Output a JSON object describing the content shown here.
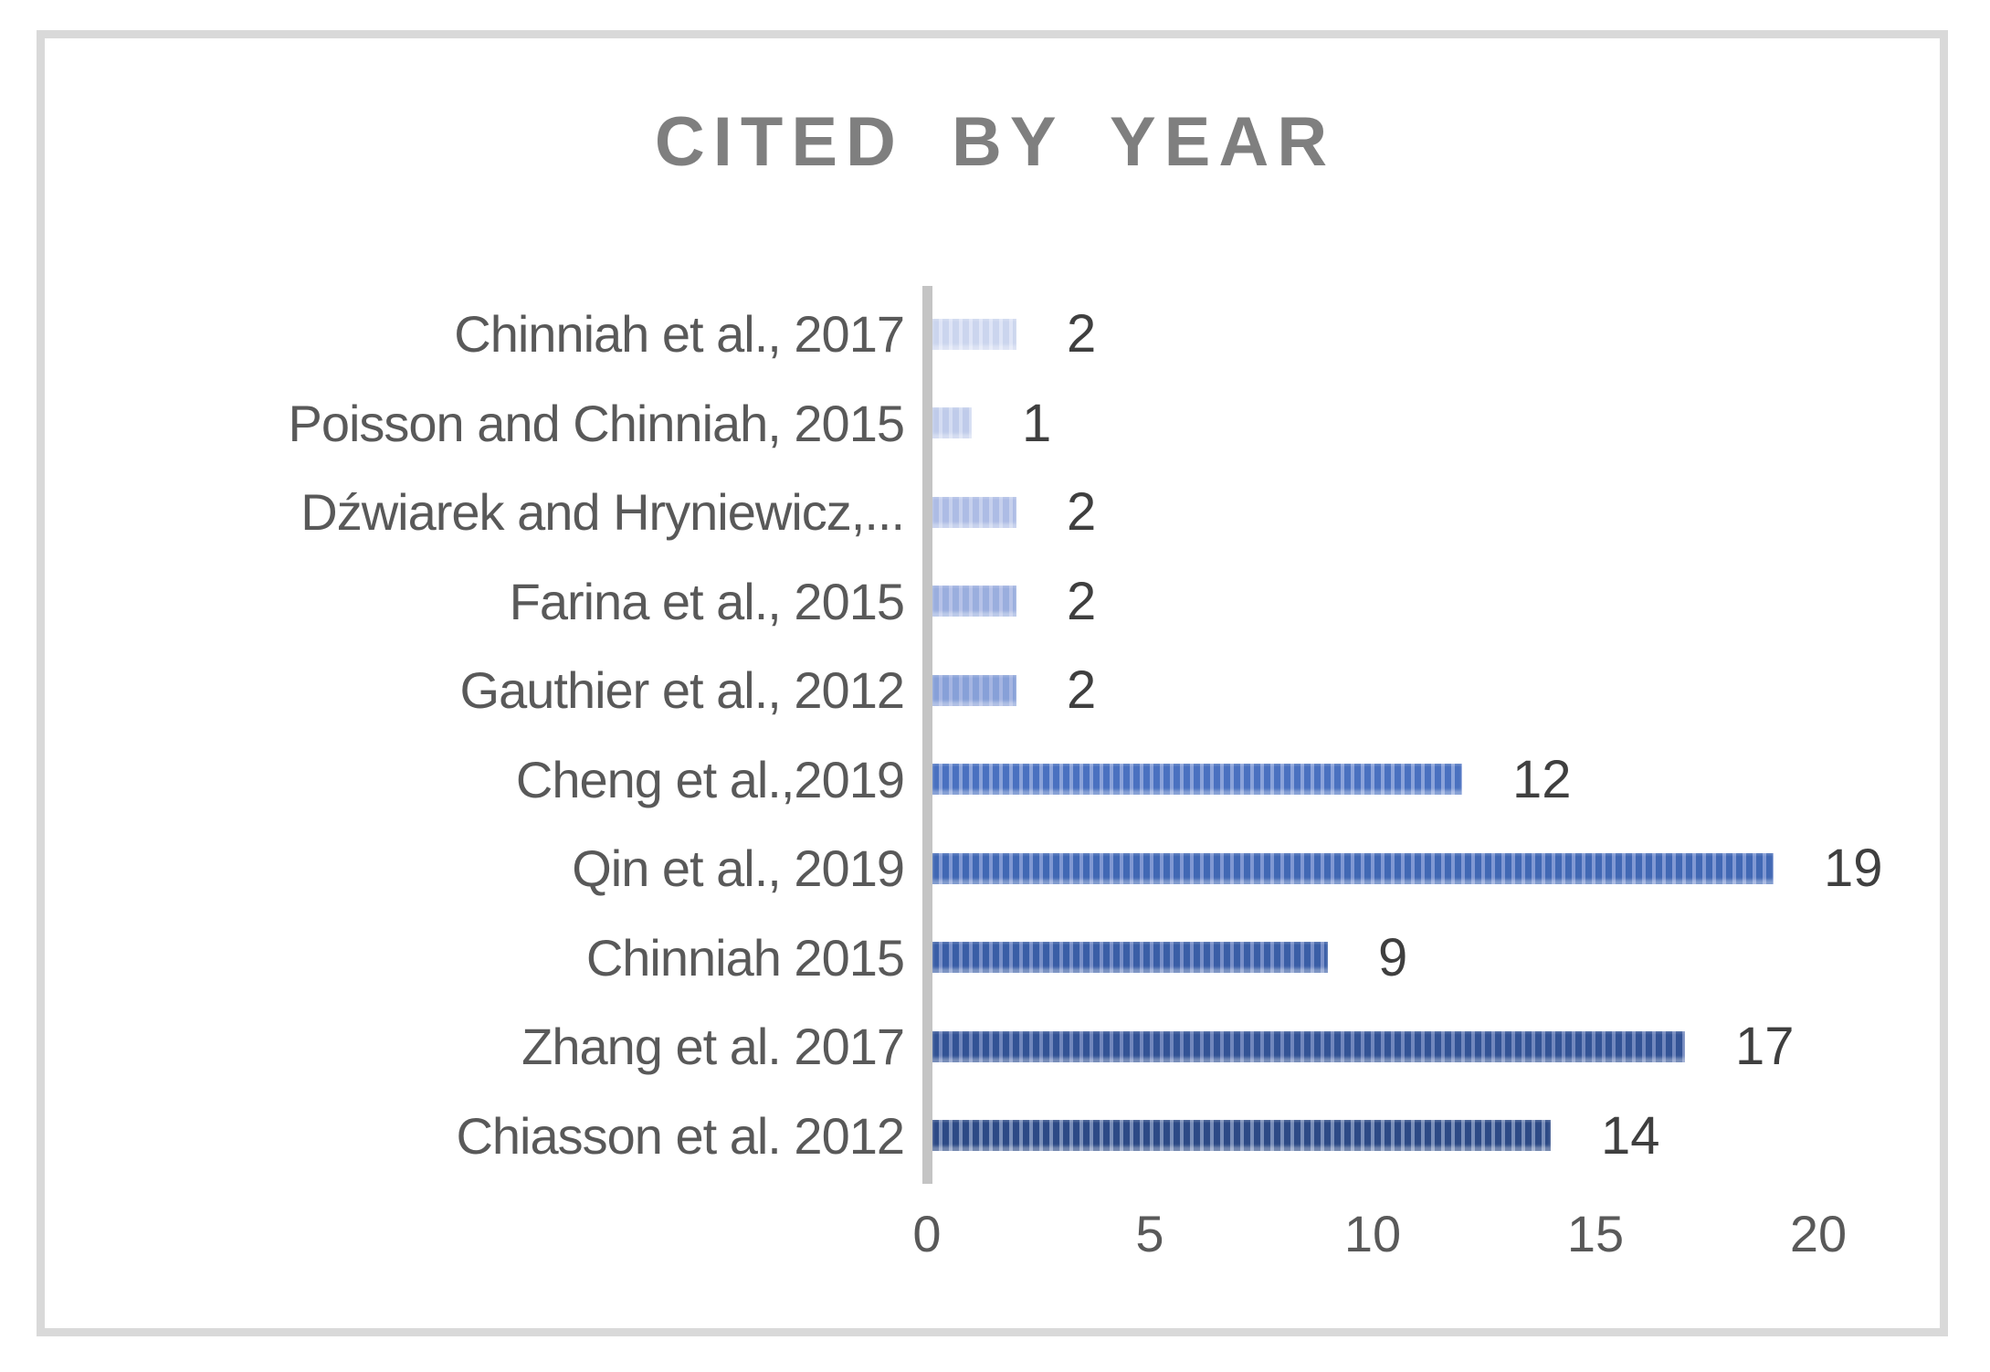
{
  "title": "CITED BY YEAR",
  "chart_data": {
    "type": "bar",
    "orientation": "horizontal",
    "title": "CITED BY YEAR",
    "categories": [
      "Chinniah et al., 2017",
      "Poisson and Chinniah, 2015",
      "Dźwiarek and Hryniewicz,...",
      "Farina et al., 2015",
      "Gauthier et al., 2012",
      "Cheng et al.,2019",
      "Qin et al., 2019",
      "Chinniah 2015",
      "Zhang et al. 2017",
      "Chiasson et al. 2012"
    ],
    "values": [
      2,
      1,
      2,
      2,
      2,
      12,
      19,
      9,
      17,
      14
    ],
    "data_labels": [
      "2",
      "1",
      "2",
      "2",
      "2",
      "12",
      "19",
      "9",
      "17",
      "14"
    ],
    "xlabel": "",
    "ylabel": "",
    "xlim": [
      0,
      20
    ],
    "x_ticks": [
      0,
      5,
      10,
      15,
      20
    ],
    "grid": false,
    "legend": false,
    "bar_pattern": "vertical-stripes",
    "bar_colors": [
      {
        "stripe": "#cbd5ee",
        "base": "#dee4f6"
      },
      {
        "stripe": "#bfcbea",
        "base": "#d4dcf2"
      },
      {
        "stripe": "#adbce5",
        "base": "#c6d0ed"
      },
      {
        "stripe": "#9aaede",
        "base": "#b6c2e8"
      },
      {
        "stripe": "#87a0d8",
        "base": "#a5b5e2"
      },
      {
        "stripe": "#4a71c0",
        "base": "#8ba3da"
      },
      {
        "stripe": "#4168b4",
        "base": "#8098d3"
      },
      {
        "stripe": "#3a5ea6",
        "base": "#7990c9"
      },
      {
        "stripe": "#335395",
        "base": "#7187bd"
      },
      {
        "stripe": "#2d4a86",
        "base": "#7a8fba"
      }
    ]
  },
  "styles": {
    "frame_border": "#d9d9d9",
    "title_color": "#7f7f7f",
    "label_color": "#595959",
    "value_color": "#3f3f3f",
    "axis_line_color": "#c4c4c4",
    "background": "#ffffff"
  }
}
